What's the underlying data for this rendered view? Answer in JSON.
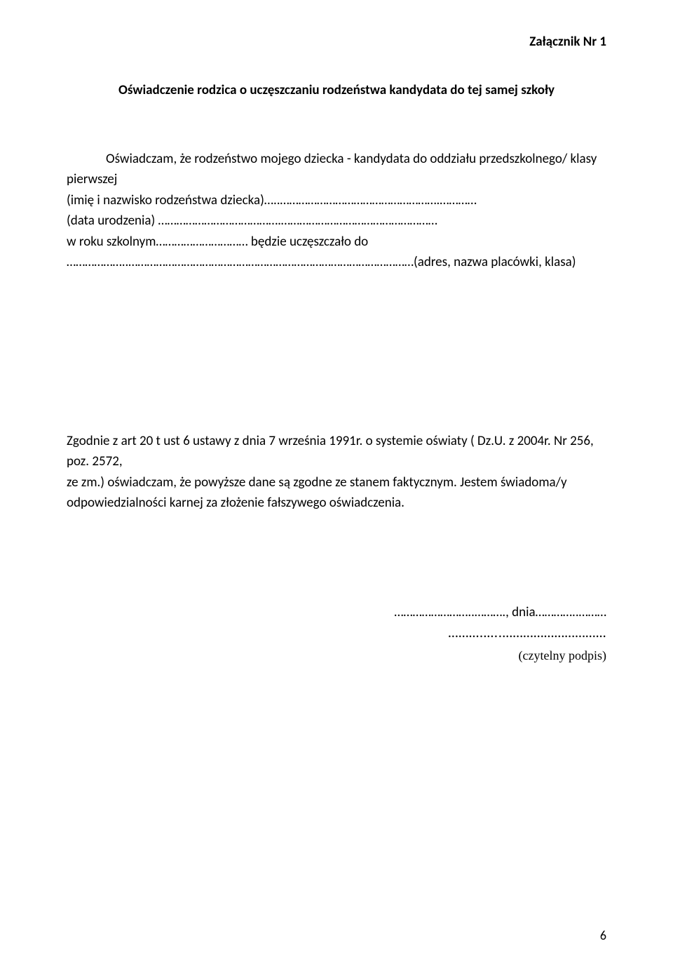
{
  "attachment_label": "Załącznik Nr 1",
  "title": "Oświadczenie rodzica o uczęszczaniu rodzeństwa kandydata do tej samej szkoły",
  "body": {
    "line1": "Oświadczam, że rodzeństwo mojego dziecka - kandydata do oddziału przedszkolnego/ klasy",
    "line2": "pierwszej",
    "line3": "(imię i nazwisko rodzeństwa dziecka)…..…………………………………………….…………",
    "line4": "(data urodzenia) ………………………………….……………………………………………",
    "line5": "w roku szkolnym………………………… będzie uczęszczało  do",
    "line6": "………………..…………………………………………………………………………………(adres, nazwa placówki, klasa)"
  },
  "declaration": {
    "part1": "Zgodnie z art 20 t ust 6 ustawy z dnia 7 września 1991r. o systemie oświaty ( Dz.U. z 2004r. Nr 256, poz. 2572,",
    "part2": "ze zm.) oświadczam, że powyższe dane są zgodne ze stanem faktycznym. Jestem świadoma/y",
    "part3": "odpowiedzialności karnej za złożenie fałszywego oświadczenia."
  },
  "signature": {
    "date_line": "……………………..………., dnia…………..………",
    "dots_line": "……….…..…………………………",
    "caption": "(czytelny podpis)"
  },
  "page_number": "6"
}
